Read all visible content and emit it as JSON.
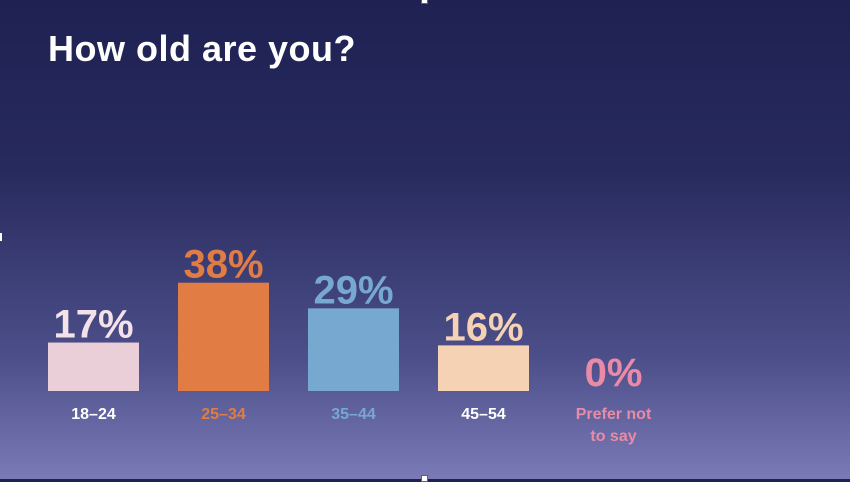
{
  "slide": {
    "title": "How old are you?"
  },
  "colors": {
    "background_top": "#1f2153",
    "background_bottom": "#7a7bb6"
  },
  "chart_data": {
    "type": "bar",
    "title": "How old are you?",
    "xlabel": "",
    "ylabel": "",
    "categories": [
      "18–24",
      "25–34",
      "35–44",
      "45–54",
      "Prefer not to say"
    ],
    "category_lines": [
      [
        "18–24"
      ],
      [
        "25–34"
      ],
      [
        "35–44"
      ],
      [
        "45–54"
      ],
      [
        "Prefer not",
        "to say"
      ]
    ],
    "values": [
      17,
      38,
      29,
      16,
      0
    ],
    "value_labels": [
      "17%",
      "38%",
      "29%",
      "16%",
      "0%"
    ],
    "unit": "%",
    "bar_colors": [
      "#ebcfd8",
      "#e07c44",
      "#76a8d0",
      "#f5d2b4",
      "#e98ba6"
    ],
    "label_colors": [
      "#f3e2e8",
      "#e07c44",
      "#76a8d0",
      "#f5d2b4",
      "#e98ba6"
    ],
    "category_colors": [
      "#ffffff",
      "#e07c44",
      "#76a8d0",
      "#ffffff",
      "#e98ba6"
    ],
    "grid": false,
    "legend": "none"
  }
}
